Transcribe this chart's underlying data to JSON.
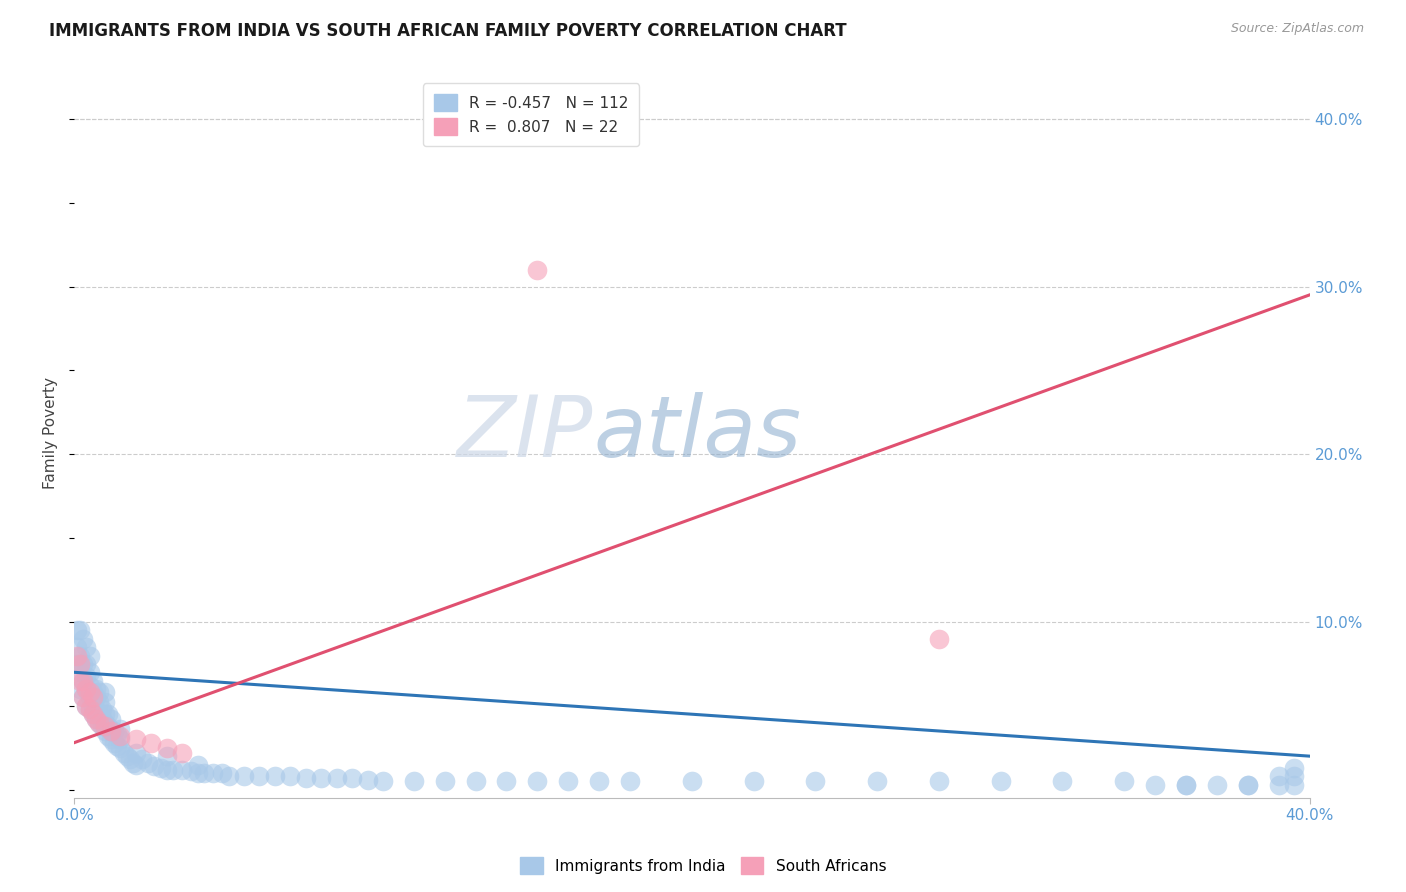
{
  "title": "IMMIGRANTS FROM INDIA VS SOUTH AFRICAN FAMILY POVERTY CORRELATION CHART",
  "source": "Source: ZipAtlas.com",
  "ylabel": "Family Poverty",
  "ytick_labels": [
    "10.0%",
    "20.0%",
    "30.0%",
    "40.0%"
  ],
  "ytick_values": [
    0.1,
    0.2,
    0.3,
    0.4
  ],
  "xlim": [
    0.0,
    0.4
  ],
  "ylim": [
    -0.005,
    0.43
  ],
  "watermark_zip": "ZIP",
  "watermark_atlas": "atlas",
  "background_color": "#ffffff",
  "grid_color": "#cccccc",
  "blue_scatter_x": [
    0.001,
    0.001,
    0.001,
    0.002,
    0.002,
    0.002,
    0.002,
    0.003,
    0.003,
    0.003,
    0.003,
    0.004,
    0.004,
    0.004,
    0.004,
    0.004,
    0.005,
    0.005,
    0.005,
    0.005,
    0.005,
    0.006,
    0.006,
    0.006,
    0.006,
    0.007,
    0.007,
    0.007,
    0.007,
    0.008,
    0.008,
    0.008,
    0.008,
    0.009,
    0.009,
    0.009,
    0.01,
    0.01,
    0.01,
    0.01,
    0.01,
    0.011,
    0.011,
    0.011,
    0.012,
    0.012,
    0.012,
    0.013,
    0.013,
    0.014,
    0.014,
    0.015,
    0.015,
    0.015,
    0.016,
    0.017,
    0.018,
    0.019,
    0.02,
    0.02,
    0.022,
    0.024,
    0.026,
    0.028,
    0.03,
    0.03,
    0.032,
    0.035,
    0.038,
    0.04,
    0.04,
    0.042,
    0.045,
    0.048,
    0.05,
    0.055,
    0.06,
    0.065,
    0.07,
    0.075,
    0.08,
    0.085,
    0.09,
    0.095,
    0.1,
    0.11,
    0.12,
    0.13,
    0.14,
    0.15,
    0.16,
    0.17,
    0.18,
    0.2,
    0.22,
    0.24,
    0.26,
    0.28,
    0.3,
    0.32,
    0.34,
    0.36,
    0.38,
    0.39,
    0.395,
    0.395,
    0.395,
    0.39,
    0.38,
    0.37,
    0.36,
    0.35
  ],
  "blue_scatter_y": [
    0.075,
    0.085,
    0.095,
    0.06,
    0.07,
    0.08,
    0.095,
    0.055,
    0.065,
    0.075,
    0.09,
    0.05,
    0.06,
    0.068,
    0.075,
    0.085,
    0.048,
    0.055,
    0.062,
    0.07,
    0.08,
    0.045,
    0.05,
    0.058,
    0.065,
    0.042,
    0.048,
    0.055,
    0.06,
    0.04,
    0.045,
    0.052,
    0.058,
    0.038,
    0.043,
    0.048,
    0.035,
    0.04,
    0.045,
    0.052,
    0.058,
    0.032,
    0.038,
    0.045,
    0.03,
    0.035,
    0.042,
    0.028,
    0.035,
    0.026,
    0.033,
    0.025,
    0.03,
    0.036,
    0.022,
    0.02,
    0.018,
    0.016,
    0.015,
    0.022,
    0.018,
    0.016,
    0.014,
    0.013,
    0.012,
    0.02,
    0.012,
    0.012,
    0.011,
    0.01,
    0.015,
    0.01,
    0.01,
    0.01,
    0.008,
    0.008,
    0.008,
    0.008,
    0.008,
    0.007,
    0.007,
    0.007,
    0.007,
    0.006,
    0.005,
    0.005,
    0.005,
    0.005,
    0.005,
    0.005,
    0.005,
    0.005,
    0.005,
    0.005,
    0.005,
    0.005,
    0.005,
    0.005,
    0.005,
    0.005,
    0.005,
    0.003,
    0.003,
    0.003,
    0.003,
    0.008,
    0.013,
    0.008,
    0.003,
    0.003,
    0.003,
    0.003
  ],
  "pink_scatter_x": [
    0.001,
    0.002,
    0.002,
    0.003,
    0.003,
    0.004,
    0.004,
    0.005,
    0.005,
    0.006,
    0.006,
    0.007,
    0.008,
    0.01,
    0.012,
    0.015,
    0.02,
    0.025,
    0.03,
    0.035,
    0.28,
    0.15
  ],
  "pink_scatter_y": [
    0.08,
    0.065,
    0.075,
    0.055,
    0.065,
    0.05,
    0.06,
    0.048,
    0.058,
    0.045,
    0.055,
    0.042,
    0.04,
    0.038,
    0.035,
    0.032,
    0.03,
    0.028,
    0.025,
    0.022,
    0.09,
    0.31
  ],
  "blue_line_x": [
    0.0,
    0.4
  ],
  "blue_line_y": [
    0.07,
    0.02
  ],
  "pink_line_x": [
    0.0,
    0.4
  ],
  "pink_line_y": [
    0.028,
    0.295
  ],
  "title_color": "#1a1a1a",
  "title_fontsize": 12,
  "tick_label_color": "#5b9bd5",
  "ylabel_color": "#444444"
}
